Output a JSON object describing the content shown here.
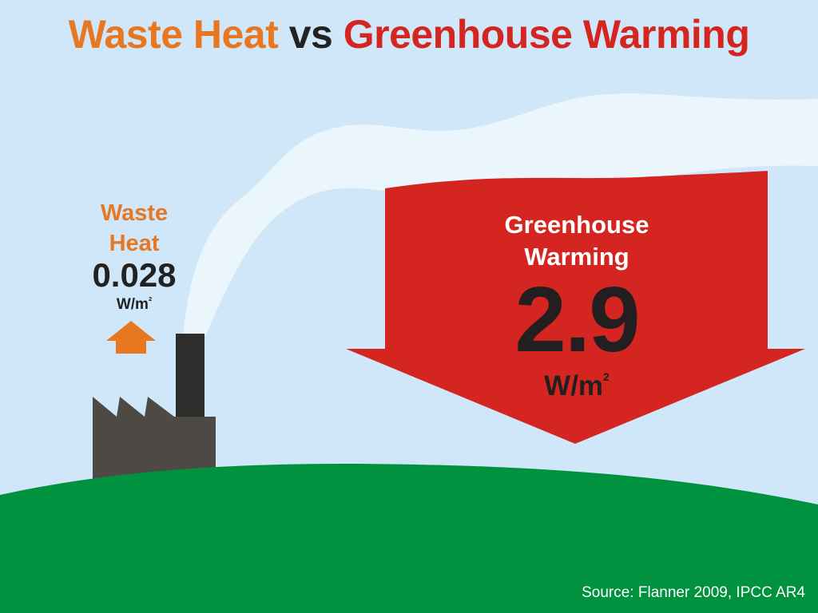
{
  "title": {
    "part1": "Waste Heat",
    "part2": "vs",
    "part3": "Greenhouse Warming"
  },
  "waste_heat": {
    "label_line1": "Waste",
    "label_line2": "Heat",
    "value": "0.028",
    "unit": "W/m",
    "unit_exponent": "2"
  },
  "greenhouse": {
    "label_line1": "Greenhouse",
    "label_line2": "Warming",
    "value": "2.9",
    "unit": "W/m",
    "unit_exponent": "2"
  },
  "source": "Source: Flanner 2009, IPCC AR4",
  "colors": {
    "sky": "#cfe7f8",
    "smoke": "#eaf5fc",
    "hill": "#00923f",
    "factory": "#4d4a45",
    "chimney": "#2d2d2b",
    "waste_accent": "#e87722",
    "greenhouse_accent": "#d42520"
  }
}
